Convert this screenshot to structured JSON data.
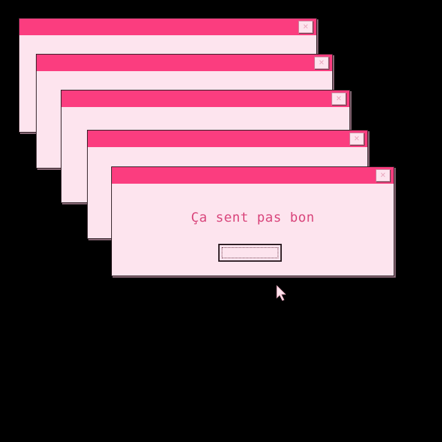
{
  "colors": {
    "titlebar": "#fb3d7f",
    "window_bg": "#fde4ee",
    "text": "#d9467c"
  },
  "windows": [
    {
      "close_icon": "close-icon"
    },
    {
      "close_icon": "close-icon"
    },
    {
      "close_icon": "close-icon"
    },
    {
      "close_icon": "close-icon"
    },
    {
      "close_icon": "close-icon",
      "message": "Ça sent pas bon",
      "button_label": ""
    }
  ],
  "cursor": "arrow-cursor-icon"
}
